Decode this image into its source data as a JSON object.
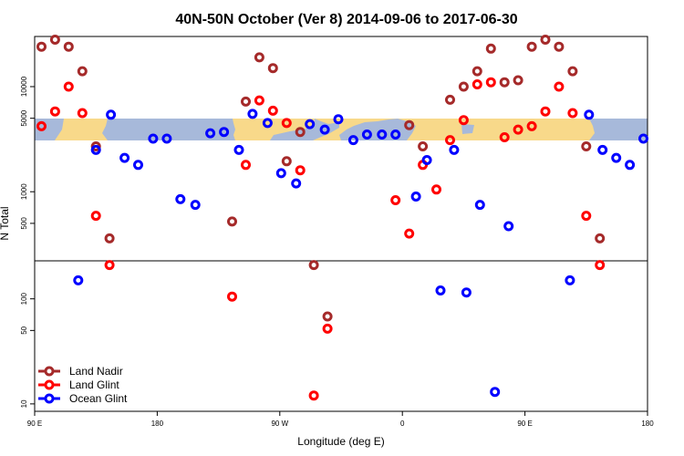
{
  "chart_data": {
    "type": "scatter",
    "title": "40N-50N October (Ver 8)   2014-09-06 to 2017-06-30",
    "xlabel": "Longitude (deg E)",
    "ylabel": "N Total",
    "x_ticks": [
      {
        "pos": 90,
        "label": "90 E"
      },
      {
        "pos": 180,
        "label": "180"
      },
      {
        "pos": 270,
        "label": "90 W"
      },
      {
        "pos": 360,
        "label": "0"
      },
      {
        "pos": 450,
        "label": "90 E"
      },
      {
        "pos": 540,
        "label": "180"
      }
    ],
    "xlim": [
      90,
      540
    ],
    "upper_panel": {
      "scale": "log",
      "ylim": [
        220,
        30000
      ],
      "y_ticks": [
        {
          "value": 500,
          "label": "500"
        },
        {
          "value": 1000,
          "label": "1000"
        },
        {
          "value": 5000,
          "label": "5000"
        },
        {
          "value": 10000,
          "label": "10000"
        }
      ]
    },
    "lower_panel": {
      "scale": "log",
      "ylim": [
        8.5,
        230
      ],
      "y_ticks": [
        {
          "value": 10,
          "label": "10"
        },
        {
          "value": 50,
          "label": "50"
        },
        {
          "value": 100,
          "label": "100"
        }
      ]
    },
    "legend_position": "bottom-left",
    "series": [
      {
        "name": "Land Nadir",
        "color": "#a52a2a",
        "points": [
          [
            95,
            24000
          ],
          [
            105,
            28000
          ],
          [
            115,
            24000
          ],
          [
            125,
            14000
          ],
          [
            135,
            2700
          ],
          [
            145,
            360
          ],
          [
            235,
            520
          ],
          [
            245,
            7200
          ],
          [
            255,
            19000
          ],
          [
            265,
            15000
          ],
          [
            275,
            1950
          ],
          [
            285,
            3700
          ],
          [
            295,
            210
          ],
          [
            305,
            68
          ],
          [
            365,
            4300
          ],
          [
            375,
            2700
          ],
          [
            395,
            7500
          ],
          [
            405,
            10000
          ],
          [
            415,
            14000
          ],
          [
            425,
            23000
          ],
          [
            435,
            11000
          ],
          [
            445,
            11500
          ],
          [
            455,
            24000
          ],
          [
            465,
            28000
          ],
          [
            475,
            24000
          ],
          [
            485,
            14000
          ],
          [
            495,
            2700
          ],
          [
            505,
            360
          ]
        ]
      },
      {
        "name": "Land Glint",
        "color": "#ff0000",
        "points": [
          [
            95,
            4200
          ],
          [
            105,
            5800
          ],
          [
            115,
            10000
          ],
          [
            125,
            5600
          ],
          [
            135,
            590
          ],
          [
            145,
            210
          ],
          [
            235,
            105
          ],
          [
            245,
            1800
          ],
          [
            255,
            7400
          ],
          [
            265,
            5900
          ],
          [
            275,
            4500
          ],
          [
            285,
            1600
          ],
          [
            295,
            12
          ],
          [
            305,
            52
          ],
          [
            355,
            830
          ],
          [
            365,
            400
          ],
          [
            375,
            1800
          ],
          [
            385,
            1050
          ],
          [
            395,
            3100
          ],
          [
            405,
            4800
          ],
          [
            415,
            10500
          ],
          [
            425,
            11000
          ],
          [
            435,
            3300
          ],
          [
            445,
            3900
          ],
          [
            455,
            4200
          ],
          [
            465,
            5800
          ],
          [
            475,
            10000
          ],
          [
            485,
            5600
          ],
          [
            495,
            590
          ],
          [
            505,
            210
          ]
        ]
      },
      {
        "name": "Ocean Glint",
        "color": "#0000ff",
        "points": [
          [
            122,
            150
          ],
          [
            135,
            2500
          ],
          [
            146,
            5400
          ],
          [
            156,
            2100
          ],
          [
            166,
            1800
          ],
          [
            177,
            3200
          ],
          [
            187,
            3200
          ],
          [
            197,
            850
          ],
          [
            208,
            750
          ],
          [
            219,
            3600
          ],
          [
            229,
            3700
          ],
          [
            240,
            2500
          ],
          [
            250,
            5500
          ],
          [
            261,
            4500
          ],
          [
            271,
            1500
          ],
          [
            282,
            1200
          ],
          [
            292,
            4400
          ],
          [
            303,
            3900
          ],
          [
            313,
            4900
          ],
          [
            324,
            3100
          ],
          [
            334,
            3500
          ],
          [
            345,
            3500
          ],
          [
            355,
            3500
          ],
          [
            370,
            900
          ],
          [
            378,
            2000
          ],
          [
            388,
            120
          ],
          [
            398,
            2500
          ],
          [
            407,
            115
          ],
          [
            417,
            750
          ],
          [
            428,
            13
          ],
          [
            438,
            470
          ],
          [
            483,
            150
          ],
          [
            497,
            5400
          ],
          [
            507,
            2500
          ],
          [
            517,
            2100
          ],
          [
            527,
            1800
          ],
          [
            537,
            3200
          ]
        ]
      }
    ]
  }
}
